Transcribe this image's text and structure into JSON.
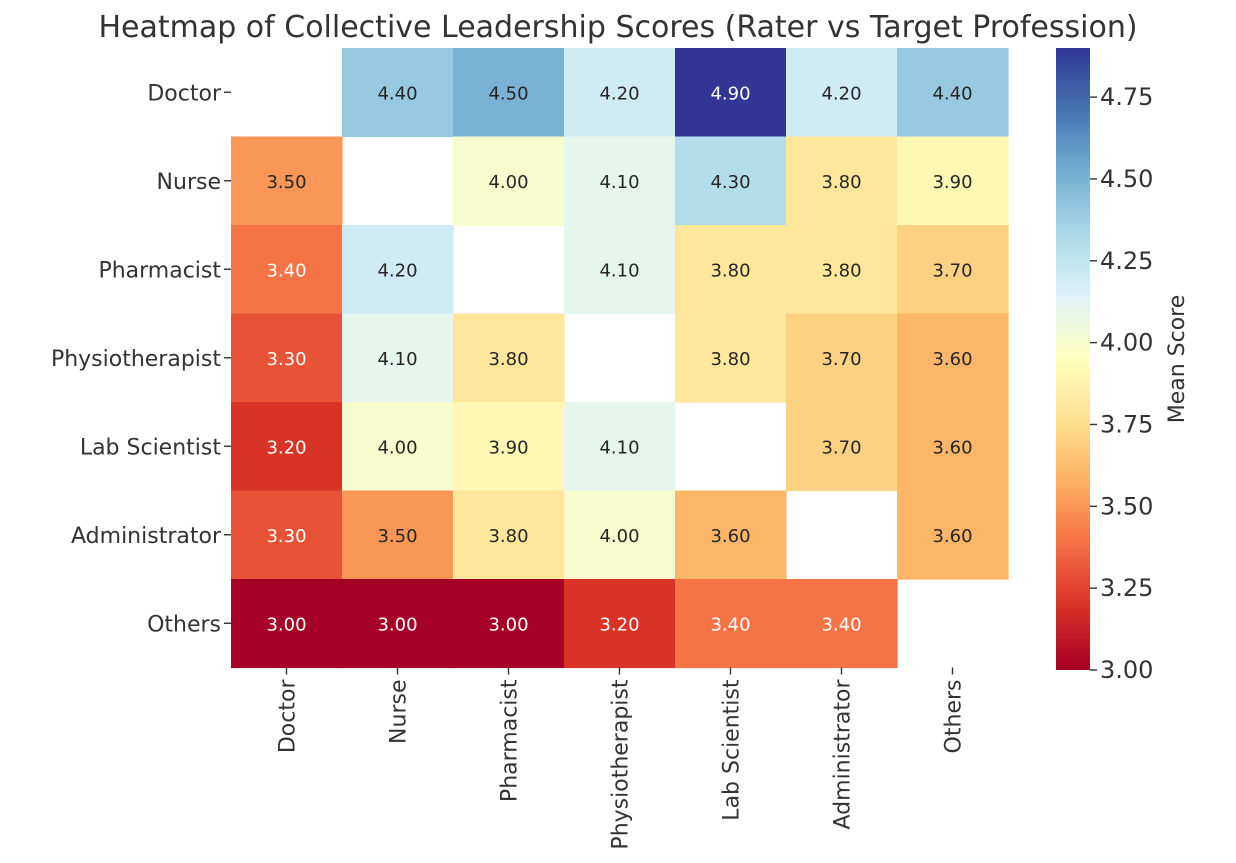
{
  "chart_data": {
    "type": "heatmap",
    "title": "Heatmap of Collective Leadership Scores (Rater vs Target Profession)",
    "rows": [
      "Doctor",
      "Nurse",
      "Pharmacist",
      "Physiotherapist",
      "Lab Scientist",
      "Administrator",
      "Others"
    ],
    "columns": [
      "Doctor",
      "Nurse",
      "Pharmacist",
      "Physiotherapist",
      "Lab Scientist",
      "Administrator",
      "Others"
    ],
    "values": [
      [
        null,
        4.4,
        4.5,
        4.2,
        4.9,
        4.2,
        4.4
      ],
      [
        3.5,
        null,
        4.0,
        4.1,
        4.3,
        3.8,
        3.9
      ],
      [
        3.4,
        4.2,
        null,
        4.1,
        3.8,
        3.8,
        3.7
      ],
      [
        3.3,
        4.1,
        3.8,
        null,
        3.8,
        3.7,
        3.6
      ],
      [
        3.2,
        4.0,
        3.9,
        4.1,
        null,
        3.7,
        3.6
      ],
      [
        3.3,
        3.5,
        3.8,
        4.0,
        3.6,
        null,
        3.6
      ],
      [
        3.0,
        3.0,
        3.0,
        3.2,
        3.4,
        3.4,
        null
      ]
    ],
    "value_format": "2 decimals",
    "colorbar": {
      "label": "Mean Score",
      "range": [
        3.0,
        4.9
      ],
      "ticks": [
        "3.00",
        "3.25",
        "3.50",
        "3.75",
        "4.00",
        "4.25",
        "4.50",
        "4.75"
      ],
      "colormap": "RdYlBu"
    }
  }
}
